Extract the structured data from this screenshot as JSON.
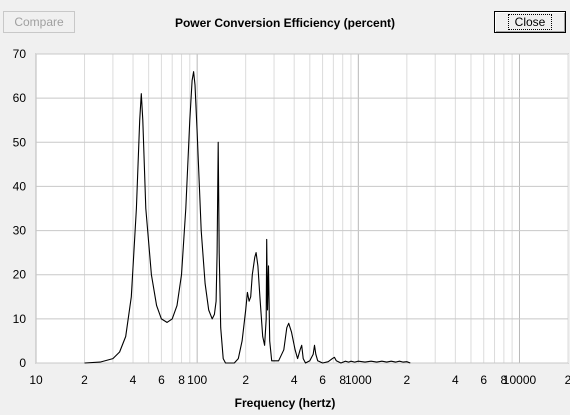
{
  "buttons": {
    "compare_label": "Compare",
    "close_label": "Close"
  },
  "chart_data": {
    "type": "line",
    "title": "Power Conversion Efficiency (percent)",
    "xlabel": "Frequency (hertz)",
    "ylabel": "",
    "x_scale": "log",
    "xlim": [
      10,
      20000
    ],
    "ylim": [
      0,
      70
    ],
    "grid": true,
    "y_ticks": [
      "0",
      "10",
      "20",
      "30",
      "40",
      "50",
      "60",
      "70"
    ],
    "x_ticks": [
      {
        "value": 10,
        "label": "10"
      },
      {
        "value": 20,
        "label": "2"
      },
      {
        "value": 40,
        "label": "4"
      },
      {
        "value": 60,
        "label": "6"
      },
      {
        "value": 80,
        "label": "8"
      },
      {
        "value": 100,
        "label": "100"
      },
      {
        "value": 200,
        "label": "2"
      },
      {
        "value": 400,
        "label": "4"
      },
      {
        "value": 600,
        "label": "6"
      },
      {
        "value": 800,
        "label": "8"
      },
      {
        "value": 1000,
        "label": "1000"
      },
      {
        "value": 2000,
        "label": "2"
      },
      {
        "value": 4000,
        "label": "4"
      },
      {
        "value": 6000,
        "label": "6"
      },
      {
        "value": 8000,
        "label": "8"
      },
      {
        "value": 10000,
        "label": "10000"
      },
      {
        "value": 20000,
        "label": "2"
      }
    ],
    "series": [
      {
        "color": "#000000",
        "points": [
          [
            20,
            0
          ],
          [
            25,
            0.2
          ],
          [
            30,
            1
          ],
          [
            33,
            2.5
          ],
          [
            36,
            6
          ],
          [
            39,
            15
          ],
          [
            42,
            35
          ],
          [
            44,
            55
          ],
          [
            45,
            61
          ],
          [
            46,
            55
          ],
          [
            48,
            35
          ],
          [
            52,
            20
          ],
          [
            56,
            13
          ],
          [
            60,
            10
          ],
          [
            65,
            9.2
          ],
          [
            70,
            10
          ],
          [
            75,
            13
          ],
          [
            80,
            20
          ],
          [
            85,
            35
          ],
          [
            90,
            55
          ],
          [
            93,
            64
          ],
          [
            95,
            66
          ],
          [
            97,
            63
          ],
          [
            100,
            52
          ],
          [
            106,
            30
          ],
          [
            112,
            18
          ],
          [
            118,
            12
          ],
          [
            124,
            10
          ],
          [
            128,
            11
          ],
          [
            131,
            14
          ],
          [
            133,
            25
          ],
          [
            135,
            50
          ],
          [
            137,
            25
          ],
          [
            140,
            8
          ],
          [
            145,
            1
          ],
          [
            150,
            0
          ],
          [
            170,
            0
          ],
          [
            180,
            1
          ],
          [
            190,
            5
          ],
          [
            200,
            12
          ],
          [
            205,
            16
          ],
          [
            210,
            14
          ],
          [
            215,
            15
          ],
          [
            220,
            20
          ],
          [
            228,
            24
          ],
          [
            232,
            25
          ],
          [
            238,
            22
          ],
          [
            245,
            15
          ],
          [
            255,
            6
          ],
          [
            262,
            4
          ],
          [
            268,
            10
          ],
          [
            270,
            28
          ],
          [
            273,
            12
          ],
          [
            277,
            22
          ],
          [
            282,
            5
          ],
          [
            290,
            0.5
          ],
          [
            320,
            0.5
          ],
          [
            345,
            3
          ],
          [
            360,
            8
          ],
          [
            370,
            9
          ],
          [
            385,
            7
          ],
          [
            405,
            3
          ],
          [
            420,
            1
          ],
          [
            435,
            3
          ],
          [
            445,
            4
          ],
          [
            455,
            1
          ],
          [
            470,
            0
          ],
          [
            500,
            0.5
          ],
          [
            525,
            2
          ],
          [
            535,
            4
          ],
          [
            545,
            2
          ],
          [
            560,
            0.5
          ],
          [
            600,
            0
          ],
          [
            650,
            0.3
          ],
          [
            690,
            1
          ],
          [
            710,
            1.3
          ],
          [
            730,
            0.5
          ],
          [
            780,
            0
          ],
          [
            830,
            0.4
          ],
          [
            870,
            0.2
          ],
          [
            900,
            0.4
          ],
          [
            950,
            0.2
          ],
          [
            1000,
            0.4
          ],
          [
            1100,
            0.2
          ],
          [
            1200,
            0.4
          ],
          [
            1300,
            0.2
          ],
          [
            1400,
            0.4
          ],
          [
            1500,
            0.2
          ],
          [
            1600,
            0.4
          ],
          [
            1700,
            0.2
          ],
          [
            1800,
            0.4
          ],
          [
            1900,
            0.2
          ],
          [
            2000,
            0.3
          ],
          [
            2100,
            0
          ]
        ]
      }
    ]
  }
}
